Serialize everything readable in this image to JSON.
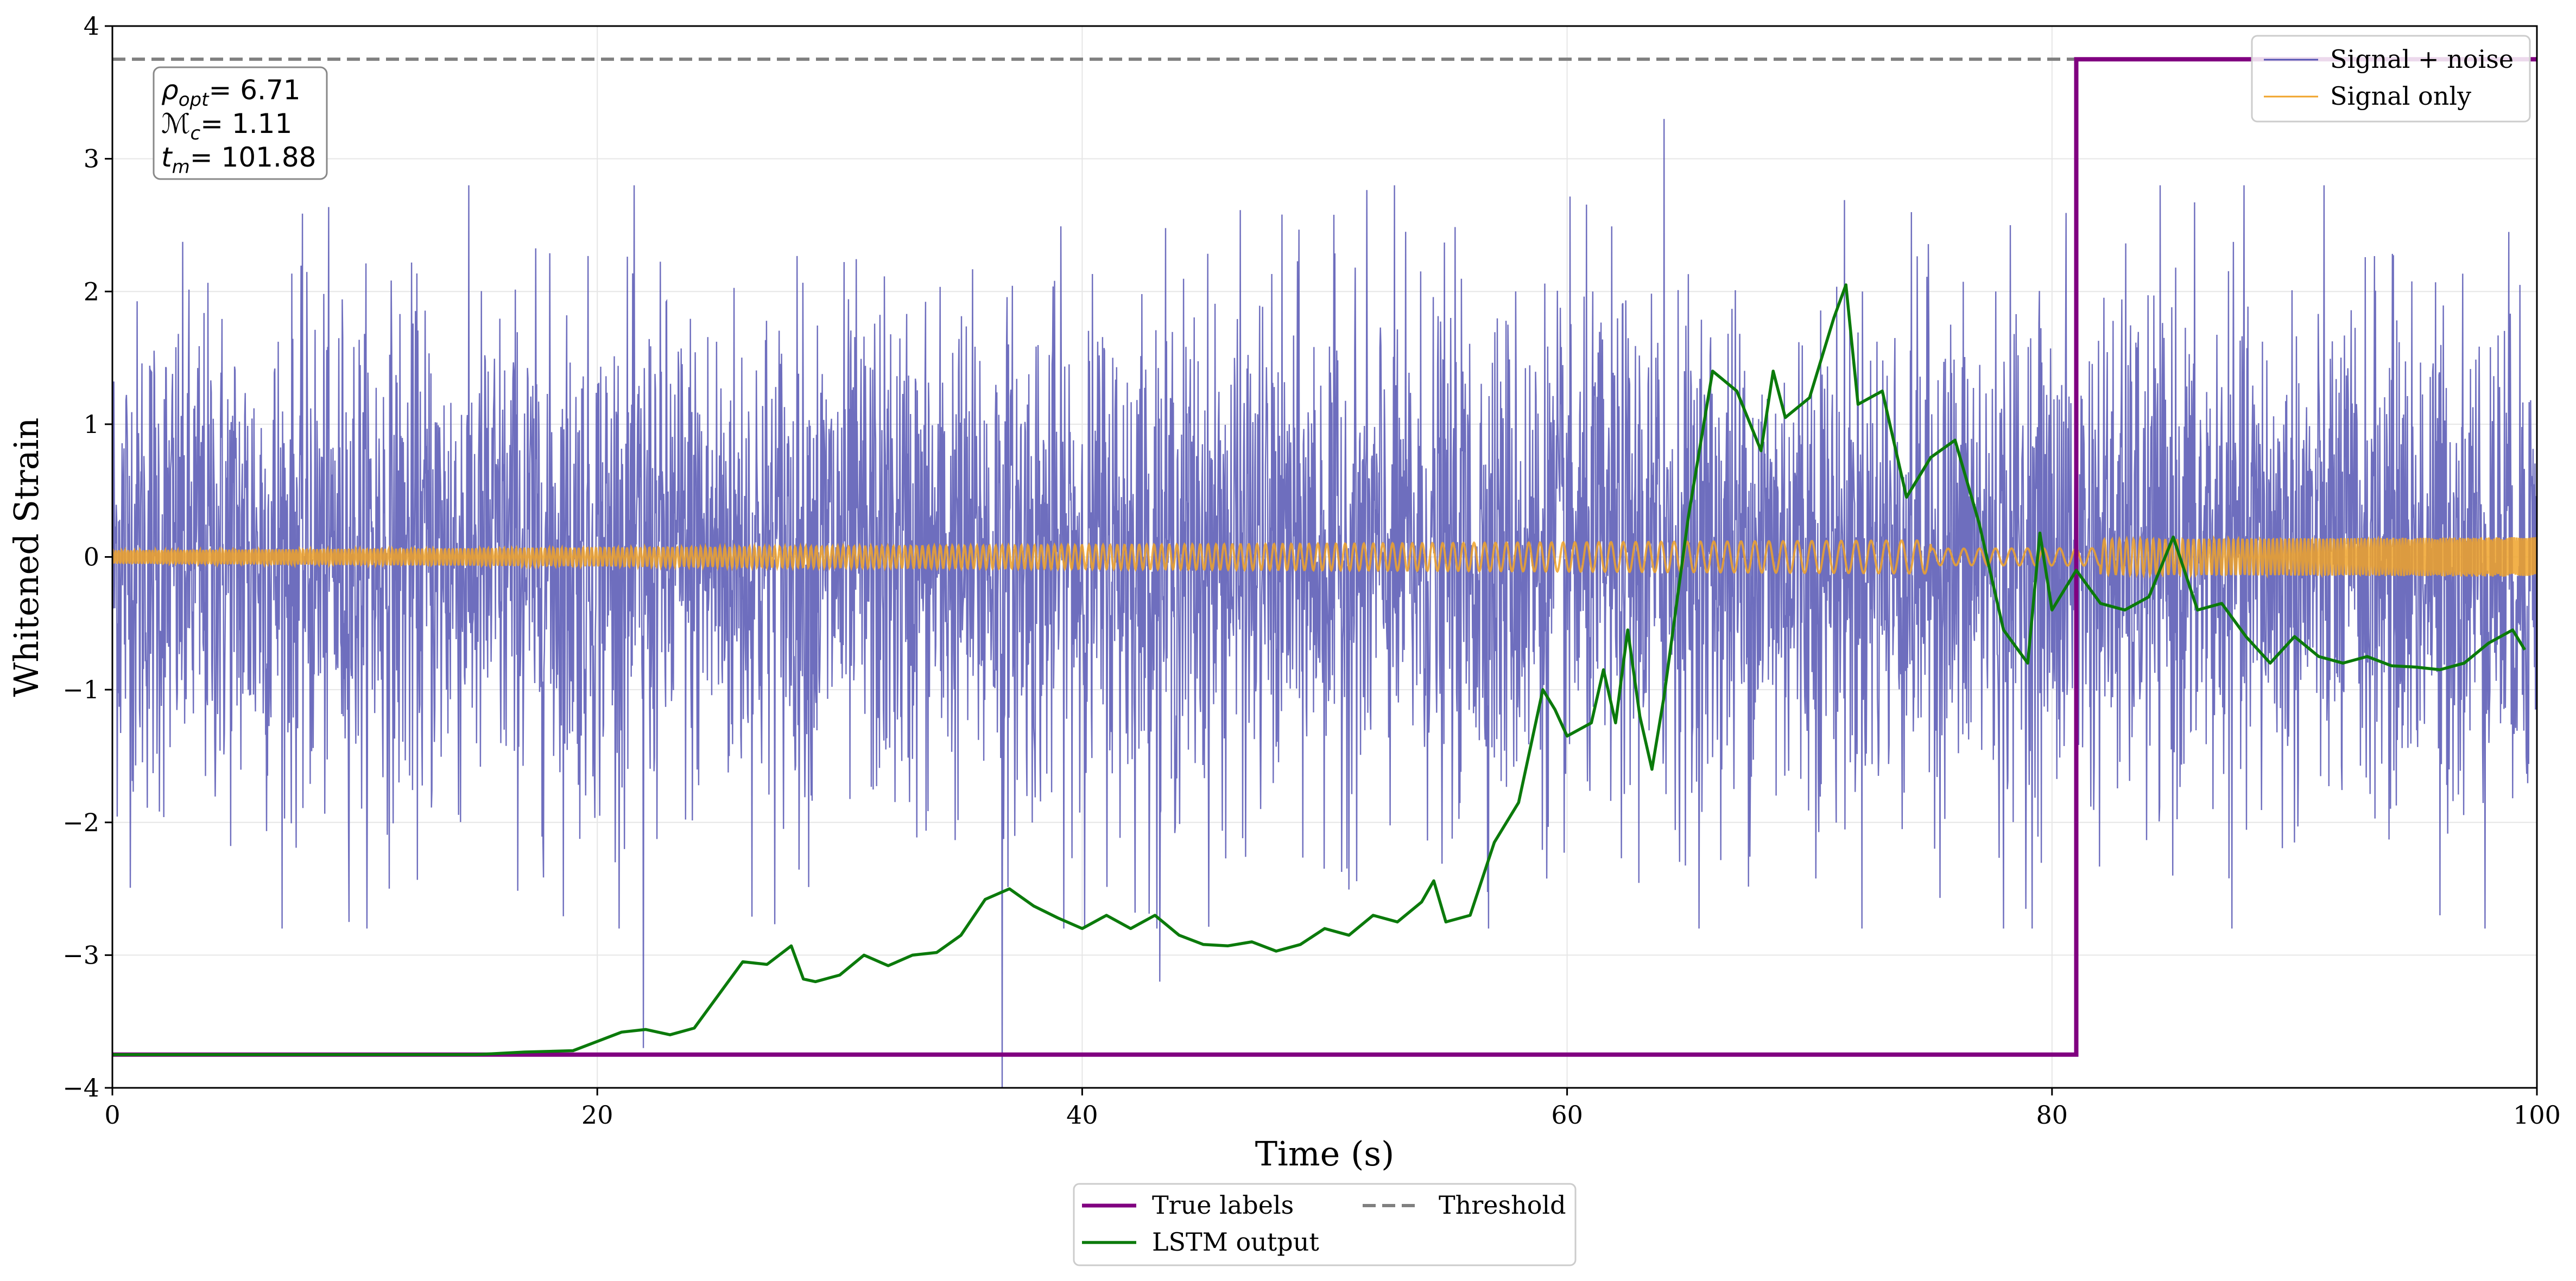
{
  "chart_data": {
    "type": "line",
    "xlabel": "Time (s)",
    "ylabel": "Whitened Strain",
    "xlim": [
      0,
      100
    ],
    "ylim": [
      -4,
      4
    ],
    "x_ticks": [
      0,
      20,
      40,
      60,
      80,
      100
    ],
    "x_tick_labels": [
      "0",
      "20",
      "40",
      "60",
      "80",
      "100"
    ],
    "y_ticks": [
      -4,
      -3,
      -2,
      -1,
      0,
      1,
      2,
      3,
      4
    ],
    "y_tick_labels": [
      "−4",
      "−3",
      "−2",
      "−1",
      "0",
      "1",
      "2",
      "3",
      "4"
    ],
    "grid": true,
    "annotation": {
      "lines": [
        {
          "symbol": "ρ",
          "sub": "opt",
          "value": "= 6.71"
        },
        {
          "symbol": "ℳ",
          "sub": "c",
          "value": "= 1.11"
        },
        {
          "symbol": "t",
          "sub": "m",
          "value": "= 101.88"
        }
      ]
    },
    "threshold": 3.75,
    "true_labels": {
      "low": -3.75,
      "high": 3.75,
      "step_at": 81
    },
    "signal_noise_summary": {
      "envelope_typical": [
        -2.0,
        2.0
      ],
      "max_spike": 3.3,
      "min_spike": -4.0
    },
    "signal_only_summary": {
      "amplitude_early": 0.05,
      "amplitude_late": 0.15,
      "note_region": [
        75,
        82
      ]
    },
    "lstm_output": {
      "x": [
        0,
        5,
        10,
        15,
        17,
        19,
        20,
        21,
        22,
        23,
        24,
        25,
        26,
        27,
        28,
        28.5,
        29,
        30,
        31,
        32,
        33,
        34,
        35,
        36,
        37,
        38,
        39,
        40,
        41,
        42,
        43,
        44,
        45,
        46,
        47,
        48,
        49,
        50,
        51,
        52,
        53,
        54,
        54.5,
        55,
        56,
        57,
        58,
        59,
        59.5,
        60,
        61,
        61.5,
        62,
        62.5,
        63,
        63.5,
        64,
        65,
        66,
        67,
        68,
        68.5,
        69,
        70,
        71,
        71.5,
        72,
        73,
        74,
        75,
        76,
        77,
        78,
        79,
        79.5,
        80,
        81,
        82,
        83,
        84,
        85,
        86,
        87,
        88,
        89,
        90,
        91,
        92,
        93,
        94,
        95,
        96,
        97,
        98,
        99,
        99.5
      ],
      "y": [
        -3.75,
        -3.75,
        -3.75,
        -3.75,
        -3.73,
        -3.72,
        -3.65,
        -3.58,
        -3.56,
        -3.6,
        -3.55,
        -3.3,
        -3.05,
        -3.07,
        -2.93,
        -3.18,
        -3.2,
        -3.15,
        -3.0,
        -3.08,
        -3.0,
        -2.98,
        -2.85,
        -2.58,
        -2.5,
        -2.63,
        -2.72,
        -2.8,
        -2.7,
        -2.8,
        -2.7,
        -2.85,
        -2.92,
        -2.93,
        -2.9,
        -2.97,
        -2.92,
        -2.8,
        -2.85,
        -2.7,
        -2.75,
        -2.6,
        -2.44,
        -2.75,
        -2.7,
        -2.15,
        -1.85,
        -1.0,
        -1.15,
        -1.35,
        -1.25,
        -0.85,
        -1.25,
        -0.55,
        -1.2,
        -1.6,
        -1.05,
        0.3,
        1.4,
        1.25,
        0.8,
        1.4,
        1.05,
        1.2,
        1.8,
        2.05,
        1.15,
        1.25,
        0.45,
        0.75,
        0.88,
        0.25,
        -0.55,
        -0.8,
        0.18,
        -0.4,
        -0.1,
        -0.35,
        -0.4,
        -0.3,
        0.15,
        -0.4,
        -0.35,
        -0.6,
        -0.8,
        -0.6,
        -0.75,
        -0.8,
        -0.75,
        -0.82,
        -0.83,
        -0.85,
        -0.8,
        -0.65,
        -0.55,
        -0.7
      ],
      "color": "#0b7a0b"
    },
    "legend_upper": {
      "position": "top-right",
      "entries": [
        {
          "label": "Signal + noise",
          "color": "#5555b3"
        },
        {
          "label": "Signal only",
          "color": "#f0a32a"
        }
      ]
    },
    "legend_lower": {
      "position": "below-center",
      "entries": [
        {
          "label": "True labels",
          "color": "#800080",
          "style": "solid"
        },
        {
          "label": "Threshold",
          "color": "#808080",
          "style": "dashed"
        },
        {
          "label": "LSTM output",
          "color": "#0b7a0b",
          "style": "solid"
        }
      ]
    },
    "colors": {
      "noise": "#5555b3",
      "signal": "#f0a32a",
      "true_labels": "#800080",
      "threshold": "#808080",
      "lstm": "#0b7a0b"
    }
  }
}
